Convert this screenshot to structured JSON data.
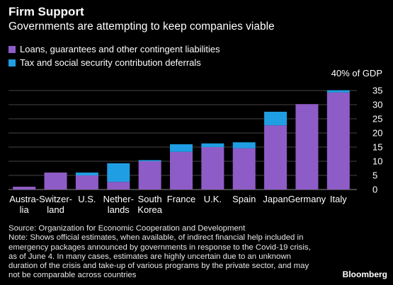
{
  "header": {
    "title": "Firm Support",
    "subtitle": "Governments are attempting to keep companies viable"
  },
  "colors": {
    "loans": "#8e5cc6",
    "deferrals": "#1f9ee3",
    "background": "#000000",
    "grid": "#444444",
    "text": "#ffffff"
  },
  "chart_data": {
    "type": "bar",
    "stacked": true,
    "unit_label": "40% of GDP",
    "categories": [
      [
        "Austra-",
        "lia"
      ],
      [
        "Switzer-",
        "land"
      ],
      [
        "U.S."
      ],
      [
        "Nether-",
        "lands"
      ],
      [
        "South",
        "Korea"
      ],
      [
        "France"
      ],
      [
        "U.K."
      ],
      [
        "Spain"
      ],
      [
        "Japan"
      ],
      [
        "Germany"
      ],
      [
        "Italy"
      ]
    ],
    "series": [
      {
        "name": "Loans, guarantees and other contingent liabilities",
        "color": "#8e5cc6",
        "values": [
          1,
          6,
          5,
          2.7,
          10,
          13.3,
          15,
          14.6,
          22.7,
          30.2,
          34.3
        ]
      },
      {
        "name": "Tax and social security contribution deferrals",
        "color": "#1f9ee3",
        "values": [
          0,
          0,
          1,
          6.6,
          0.4,
          2.7,
          1.3,
          2.1,
          4.8,
          0,
          0.8
        ]
      }
    ],
    "ylim": [
      0,
      40
    ],
    "yticks": [
      0,
      5,
      10,
      15,
      20,
      25,
      30,
      35
    ],
    "axis_side": "right",
    "grid": true,
    "legend_position": "top-left"
  },
  "footer": {
    "source": "Source: Organization for Economic Cooperation and Development",
    "note": "Note: Shows official estimates, when available, of indirect financial help included in emergency packages announced by governments in response to the Covid-19 crisis, as of June 4. In many cases, estimates are highly uncertain due to an unknown duration of the crisis and take-up of various programs by the private sector, and may not be comparable across countries",
    "brand": "Bloomberg"
  }
}
